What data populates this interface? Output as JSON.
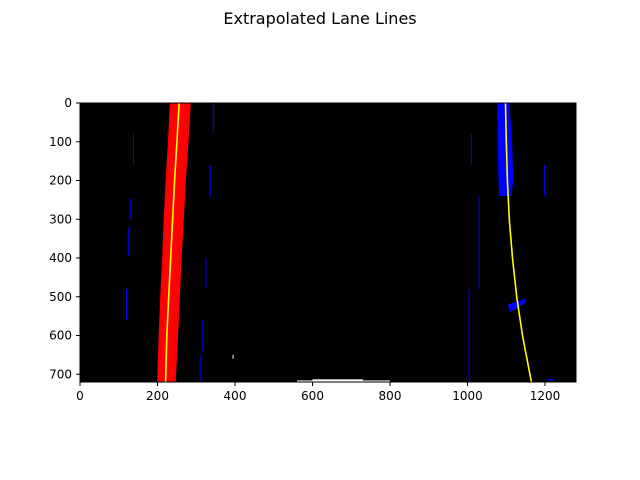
{
  "chart_data": {
    "type": "line",
    "title": "Extrapolated Lane Lines",
    "xlabel": "",
    "ylabel": "",
    "xlim": [
      0,
      1280
    ],
    "ylim": [
      720,
      0
    ],
    "y_inverted": true,
    "grid": false,
    "background": "image",
    "x_ticks": [
      0,
      200,
      400,
      600,
      800,
      1000,
      1200
    ],
    "y_ticks": [
      0,
      100,
      200,
      300,
      400,
      500,
      600,
      700
    ],
    "series": [
      {
        "role": "left-lane-fit",
        "color": "#ffff00",
        "points": [
          [
            256,
            0
          ],
          [
            250,
            100
          ],
          [
            244,
            200
          ],
          [
            239,
            300
          ],
          [
            234,
            400
          ],
          [
            229,
            500
          ],
          [
            224,
            600
          ],
          [
            221,
            720
          ]
        ]
      },
      {
        "role": "right-lane-fit",
        "color": "#ffff00",
        "points": [
          [
            1098,
            0
          ],
          [
            1100,
            100
          ],
          [
            1103,
            200
          ],
          [
            1108,
            300
          ],
          [
            1116,
            400
          ],
          [
            1127,
            500
          ],
          [
            1142,
            600
          ],
          [
            1165,
            720
          ]
        ]
      }
    ],
    "pixel_regions": [
      {
        "role": "left-lane-pixels",
        "color": "#ff0000",
        "left_edge": [
          [
            232,
            0
          ],
          [
            227,
            100
          ],
          [
            221,
            200
          ],
          [
            216,
            300
          ],
          [
            212,
            400
          ],
          [
            207,
            500
          ],
          [
            203,
            600
          ],
          [
            199,
            720
          ]
        ],
        "right_edge": [
          [
            286,
            0
          ],
          [
            280,
            100
          ],
          [
            273,
            200
          ],
          [
            268,
            300
          ],
          [
            262,
            400
          ],
          [
            258,
            500
          ],
          [
            253,
            600
          ],
          [
            247,
            720
          ]
        ]
      },
      {
        "role": "right-lane-pixels",
        "color": "#0000ff",
        "left_edge": [
          [
            1077,
            0
          ],
          [
            1078,
            100
          ],
          [
            1080,
            200
          ],
          [
            1082,
            240
          ]
        ],
        "right_edge": [
          [
            1108,
            0
          ],
          [
            1115,
            100
          ],
          [
            1118,
            200
          ],
          [
            1113,
            240
          ]
        ]
      },
      {
        "role": "right-lane-pixels",
        "color": "#0000ff",
        "left_edge": [
          [
            1104,
            520
          ],
          [
            1110,
            540
          ]
        ],
        "right_edge": [
          [
            1150,
            505
          ],
          [
            1150,
            515
          ]
        ]
      }
    ],
    "noise_segments": [
      {
        "color": "#0000ff",
        "x": 138,
        "y": [
          80,
          160
        ]
      },
      {
        "color": "#0000ff",
        "x": 131,
        "y": [
          245,
          300
        ]
      },
      {
        "color": "#0000ff",
        "x": 126,
        "y": [
          320,
          395
        ]
      },
      {
        "color": "#0000ff",
        "x": 120,
        "y": [
          480,
          560
        ]
      },
      {
        "color": "#0000ff",
        "x": 344,
        "y": [
          0,
          80
        ]
      },
      {
        "color": "#0000ff",
        "x": 336,
        "y": [
          160,
          240
        ]
      },
      {
        "color": "#0000ff",
        "x": 325,
        "y": [
          400,
          480
        ]
      },
      {
        "color": "#0000ff",
        "x": 317,
        "y": [
          560,
          640
        ]
      },
      {
        "color": "#0000ff",
        "x": 310,
        "y": [
          650,
          720
        ]
      },
      {
        "color": "#0000ff",
        "x": 1010,
        "y": [
          80,
          160
        ]
      },
      {
        "color": "#0000ff",
        "x": 1030,
        "y": [
          240,
          480
        ]
      },
      {
        "color": "#0000ff",
        "x": 1004,
        "y": [
          480,
          720
        ]
      },
      {
        "color": "#0000ff",
        "x": 1199,
        "y": [
          160,
          240
        ]
      },
      {
        "color": "#ffffff",
        "x": 395,
        "y": [
          650,
          660
        ]
      }
    ],
    "white_bars": [
      {
        "color": "#ffffff",
        "x": [
          560,
          800
        ],
        "y": [
          716,
          720
        ]
      },
      {
        "color": "#ffffff",
        "x": [
          600,
          730
        ],
        "y": [
          713,
          716
        ]
      },
      {
        "color": "#0000ff",
        "x": [
          1205,
          1222
        ],
        "y": [
          712,
          716
        ]
      }
    ]
  }
}
